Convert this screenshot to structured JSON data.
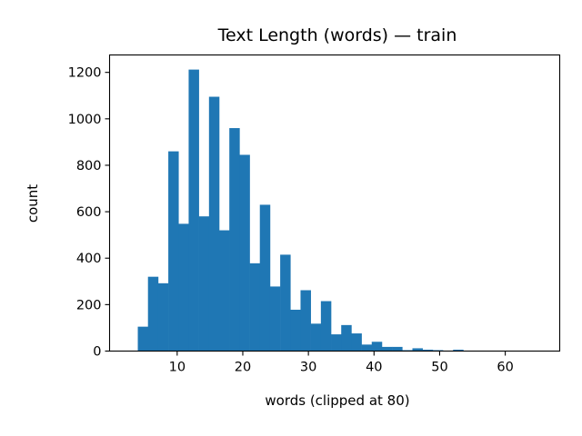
{
  "chart_data": {
    "type": "bar",
    "title": "Text Length (words) — train",
    "xlabel": "words (clipped at 80)",
    "ylabel": "count",
    "xlim": [
      -0.3,
      68.3
    ],
    "ylim": [
      0,
      1275
    ],
    "xticks": [
      10,
      20,
      30,
      40,
      50,
      60
    ],
    "yticks": [
      0,
      200,
      400,
      600,
      800,
      1000,
      1200
    ],
    "grid": false,
    "color": "#1f77b4",
    "bins": [
      {
        "x0": 4.0,
        "x1": 5.55,
        "count": 105
      },
      {
        "x0": 5.55,
        "x1": 7.1,
        "count": 320
      },
      {
        "x0": 7.1,
        "x1": 8.65,
        "count": 292
      },
      {
        "x0": 8.65,
        "x1": 10.2,
        "count": 860
      },
      {
        "x0": 10.2,
        "x1": 11.75,
        "count": 548
      },
      {
        "x0": 11.75,
        "x1": 13.3,
        "count": 1212
      },
      {
        "x0": 13.3,
        "x1": 14.85,
        "count": 580
      },
      {
        "x0": 14.85,
        "x1": 16.4,
        "count": 1095
      },
      {
        "x0": 16.4,
        "x1": 17.95,
        "count": 520
      },
      {
        "x0": 17.95,
        "x1": 19.5,
        "count": 960
      },
      {
        "x0": 19.5,
        "x1": 21.05,
        "count": 845
      },
      {
        "x0": 21.05,
        "x1": 22.6,
        "count": 378
      },
      {
        "x0": 22.6,
        "x1": 24.15,
        "count": 630
      },
      {
        "x0": 24.15,
        "x1": 25.7,
        "count": 278
      },
      {
        "x0": 25.7,
        "x1": 27.25,
        "count": 415
      },
      {
        "x0": 27.25,
        "x1": 28.8,
        "count": 178
      },
      {
        "x0": 28.8,
        "x1": 30.35,
        "count": 262
      },
      {
        "x0": 30.35,
        "x1": 31.9,
        "count": 118
      },
      {
        "x0": 31.9,
        "x1": 33.45,
        "count": 215
      },
      {
        "x0": 33.45,
        "x1": 35.0,
        "count": 72
      },
      {
        "x0": 35.0,
        "x1": 36.55,
        "count": 112
      },
      {
        "x0": 36.55,
        "x1": 38.1,
        "count": 76
      },
      {
        "x0": 38.1,
        "x1": 39.65,
        "count": 28
      },
      {
        "x0": 39.65,
        "x1": 41.2,
        "count": 40
      },
      {
        "x0": 41.2,
        "x1": 42.75,
        "count": 18
      },
      {
        "x0": 42.75,
        "x1": 44.3,
        "count": 18
      },
      {
        "x0": 44.3,
        "x1": 45.85,
        "count": 4
      },
      {
        "x0": 45.85,
        "x1": 47.4,
        "count": 12
      },
      {
        "x0": 47.4,
        "x1": 48.95,
        "count": 6
      },
      {
        "x0": 48.95,
        "x1": 50.5,
        "count": 4
      },
      {
        "x0": 50.5,
        "x1": 52.05,
        "count": 2
      },
      {
        "x0": 52.05,
        "x1": 53.6,
        "count": 6
      },
      {
        "x0": 53.6,
        "x1": 55.15,
        "count": 1
      },
      {
        "x0": 55.15,
        "x1": 56.7,
        "count": 2
      },
      {
        "x0": 56.7,
        "x1": 58.25,
        "count": 1
      },
      {
        "x0": 58.25,
        "x1": 59.8,
        "count": 1
      },
      {
        "x0": 59.8,
        "x1": 61.35,
        "count": 1
      },
      {
        "x0": 61.35,
        "x1": 62.9,
        "count": 1
      },
      {
        "x0": 62.9,
        "x1": 64.45,
        "count": 1
      },
      {
        "x0": 64.45,
        "x1": 66.0,
        "count": 1
      }
    ]
  }
}
